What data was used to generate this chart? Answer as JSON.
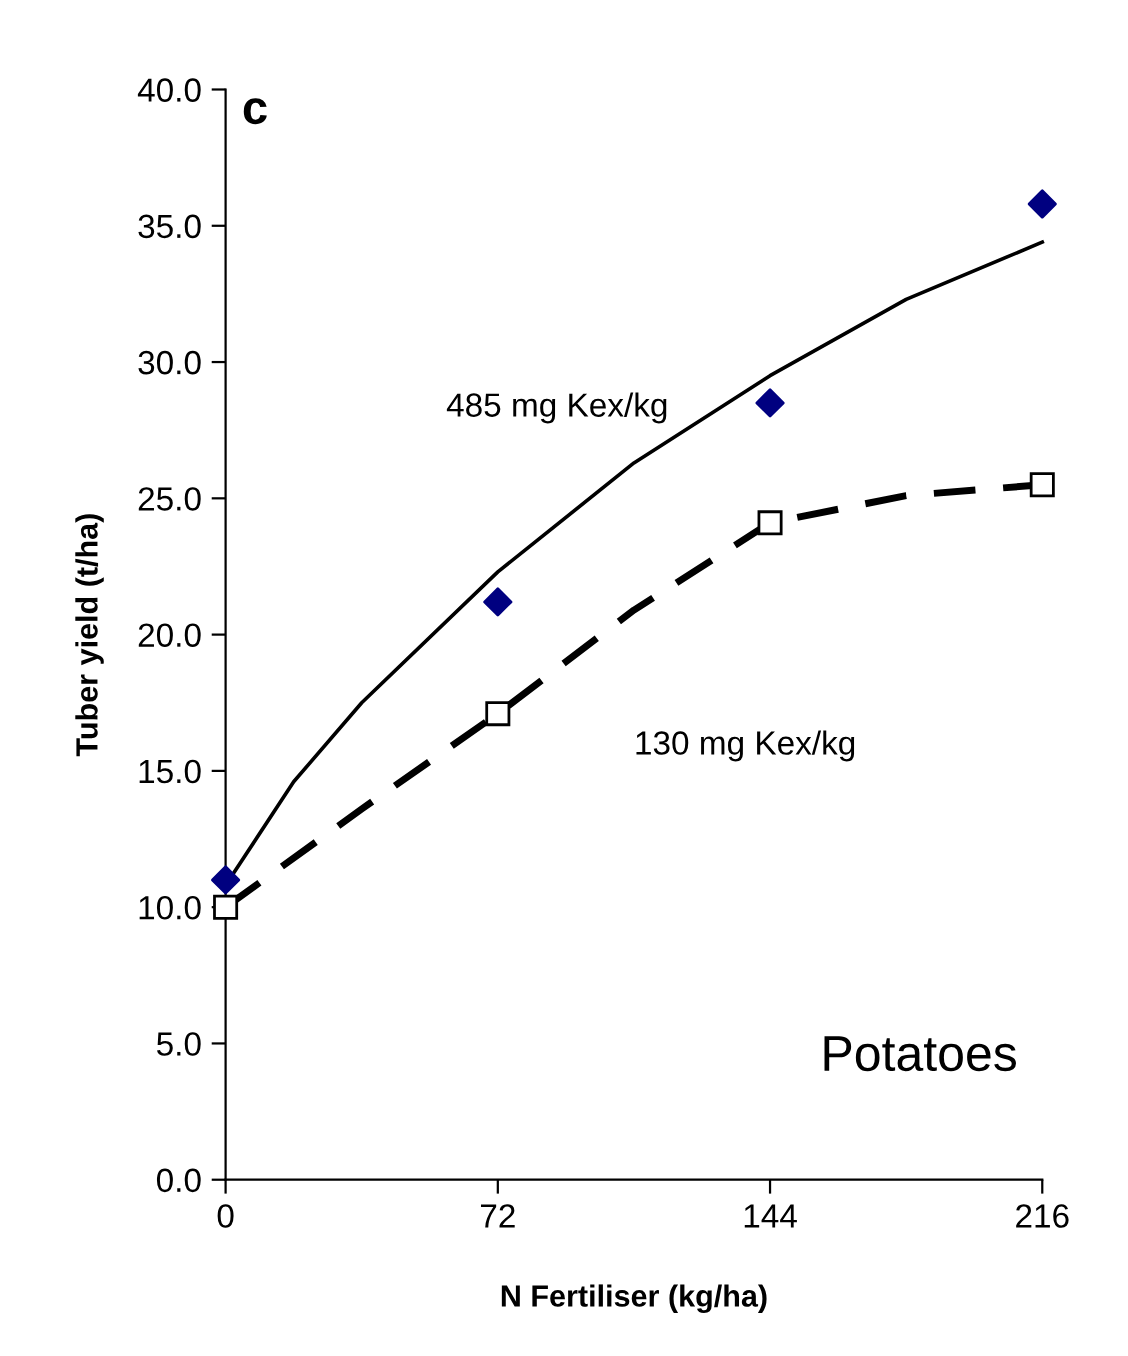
{
  "chart_data": {
    "type": "scatter",
    "xlabel": "N Fertiliser (kg/ha)",
    "ylabel": "Tuber yield (t/ha)",
    "annotations": [
      "c",
      "Potatoes"
    ],
    "series": [
      {
        "color": "#000080",
        "marker": "diamond",
        "x": [
          0,
          72,
          144,
          216
        ],
        "values": [
          11.0,
          21.2,
          28.5,
          35.8
        ]
      },
      {
        "type": "line",
        "name": "485 mg Kex/kg",
        "color": "#000000",
        "line_style": "solid",
        "x": [
          0,
          18,
          36,
          72,
          108,
          144,
          180,
          216
        ],
        "values": [
          10.8,
          14.6,
          17.5,
          22.3,
          26.3,
          29.5,
          32.3,
          34.4
        ]
      },
      {
        "type": "line",
        "name": "130 mg Kex/kg",
        "color": "#000000",
        "line_style": "dashed",
        "marker": "square",
        "x": [
          0,
          36,
          72,
          108,
          144,
          180,
          216
        ],
        "values": [
          10.0,
          13.6,
          17.1,
          20.9,
          24.1,
          25.1,
          25.5
        ]
      }
    ],
    "xlim": [
      0,
      216
    ],
    "xticks": [
      0,
      72,
      144,
      216
    ],
    "ylim": [
      0,
      40
    ],
    "yticks": [
      {
        "value": 0,
        "label": "0.0"
      },
      {
        "value": 5,
        "label": "5.0"
      },
      {
        "value": 10,
        "label": "10.0"
      },
      {
        "value": 15,
        "label": "15.0"
      },
      {
        "value": 20,
        "label": "20.0"
      },
      {
        "value": 25,
        "label": "25.0"
      },
      {
        "value": 30,
        "label": "30.0"
      },
      {
        "value": 35,
        "label": "35.0"
      },
      {
        "value": 40,
        "label": "40.0"
      }
    ],
    "grid": false,
    "legend": false
  }
}
